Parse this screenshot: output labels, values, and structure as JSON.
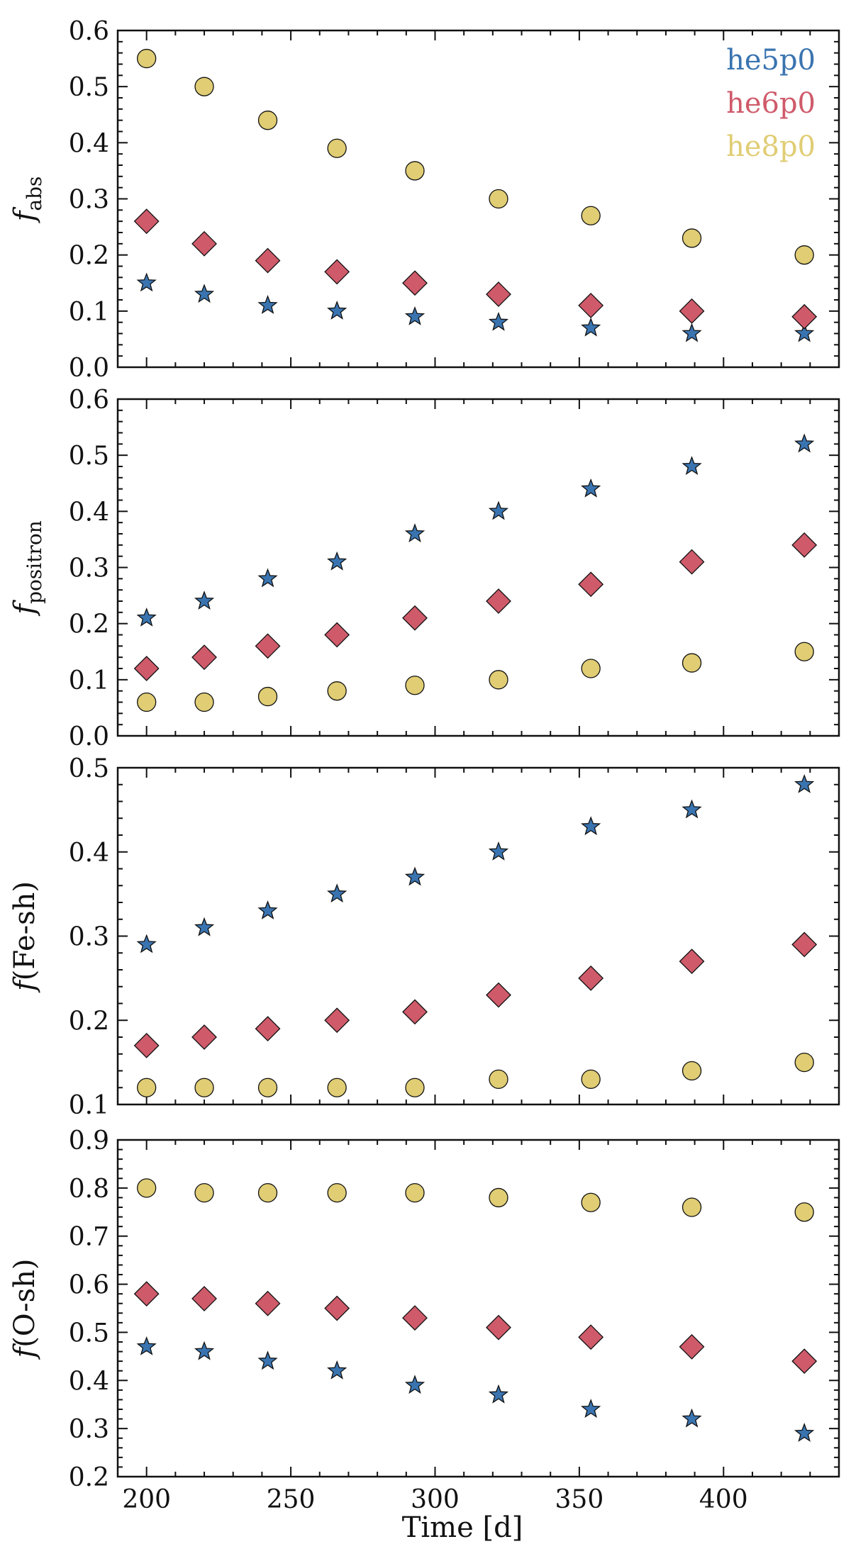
{
  "figure": {
    "xlabel": "Time [d]",
    "xticks": [
      200,
      250,
      300,
      350,
      400
    ],
    "xlim": [
      190,
      440
    ]
  },
  "legend": {
    "entries": [
      {
        "label": "he5p0",
        "color": "#3a74b0",
        "marker": "star"
      },
      {
        "label": "he6p0",
        "color": "#cf5a6a",
        "marker": "diamond"
      },
      {
        "label": "he8p0",
        "color": "#e0cd74",
        "marker": "circle"
      }
    ],
    "placement": "top-right"
  },
  "chart_data": [
    {
      "type": "scatter",
      "ylabel": {
        "main": "f",
        "sub": "abs",
        "paren": ""
      },
      "ylim": [
        0.0,
        0.6
      ],
      "yticks": [
        "0.0",
        "0.1",
        "0.2",
        "0.3",
        "0.4",
        "0.5",
        "0.6"
      ],
      "grid": false,
      "x": [
        200,
        220,
        242,
        266,
        293,
        322,
        354,
        389,
        428
      ],
      "series": [
        {
          "name": "he5p0",
          "values": [
            0.15,
            0.13,
            0.11,
            0.1,
            0.09,
            0.08,
            0.07,
            0.06,
            0.06
          ]
        },
        {
          "name": "he6p0",
          "values": [
            0.26,
            0.22,
            0.19,
            0.17,
            0.15,
            0.13,
            0.11,
            0.1,
            0.09
          ]
        },
        {
          "name": "he8p0",
          "values": [
            0.55,
            0.5,
            0.44,
            0.39,
            0.35,
            0.3,
            0.27,
            0.23,
            0.2
          ]
        }
      ]
    },
    {
      "type": "scatter",
      "ylabel": {
        "main": "f",
        "sub": "positron",
        "paren": ""
      },
      "ylim": [
        0.0,
        0.6
      ],
      "yticks": [
        "0.0",
        "0.1",
        "0.2",
        "0.3",
        "0.4",
        "0.5",
        "0.6"
      ],
      "grid": false,
      "x": [
        200,
        220,
        242,
        266,
        293,
        322,
        354,
        389,
        428
      ],
      "series": [
        {
          "name": "he5p0",
          "values": [
            0.21,
            0.24,
            0.28,
            0.31,
            0.36,
            0.4,
            0.44,
            0.48,
            0.52
          ]
        },
        {
          "name": "he6p0",
          "values": [
            0.12,
            0.14,
            0.16,
            0.18,
            0.21,
            0.24,
            0.27,
            0.31,
            0.34
          ]
        },
        {
          "name": "he8p0",
          "values": [
            0.06,
            0.06,
            0.07,
            0.08,
            0.09,
            0.1,
            0.12,
            0.13,
            0.15
          ]
        }
      ]
    },
    {
      "type": "scatter",
      "ylabel": {
        "main": "f",
        "sub": "",
        "paren": "(Fe-sh)"
      },
      "ylim": [
        0.1,
        0.5
      ],
      "yticks": [
        "0.1",
        "0.2",
        "0.3",
        "0.4",
        "0.5"
      ],
      "grid": false,
      "x": [
        200,
        220,
        242,
        266,
        293,
        322,
        354,
        389,
        428
      ],
      "series": [
        {
          "name": "he5p0",
          "values": [
            0.29,
            0.31,
            0.33,
            0.35,
            0.37,
            0.4,
            0.43,
            0.45,
            0.48
          ]
        },
        {
          "name": "he6p0",
          "values": [
            0.17,
            0.18,
            0.19,
            0.2,
            0.21,
            0.23,
            0.25,
            0.27,
            0.29
          ]
        },
        {
          "name": "he8p0",
          "values": [
            0.12,
            0.12,
            0.12,
            0.12,
            0.12,
            0.13,
            0.13,
            0.14,
            0.15
          ]
        }
      ]
    },
    {
      "type": "scatter",
      "ylabel": {
        "main": "f",
        "sub": "",
        "paren": "(O-sh)"
      },
      "ylim": [
        0.2,
        0.9
      ],
      "yticks": [
        "0.2",
        "0.3",
        "0.4",
        "0.5",
        "0.6",
        "0.7",
        "0.8",
        "0.9"
      ],
      "grid": false,
      "x": [
        200,
        220,
        242,
        266,
        293,
        322,
        354,
        389,
        428
      ],
      "series": [
        {
          "name": "he5p0",
          "values": [
            0.47,
            0.46,
            0.44,
            0.42,
            0.39,
            0.37,
            0.34,
            0.32,
            0.29
          ]
        },
        {
          "name": "he6p0",
          "values": [
            0.58,
            0.57,
            0.56,
            0.55,
            0.53,
            0.51,
            0.49,
            0.47,
            0.44
          ]
        },
        {
          "name": "he8p0",
          "values": [
            0.8,
            0.79,
            0.79,
            0.79,
            0.79,
            0.78,
            0.77,
            0.76,
            0.75
          ]
        }
      ]
    }
  ]
}
